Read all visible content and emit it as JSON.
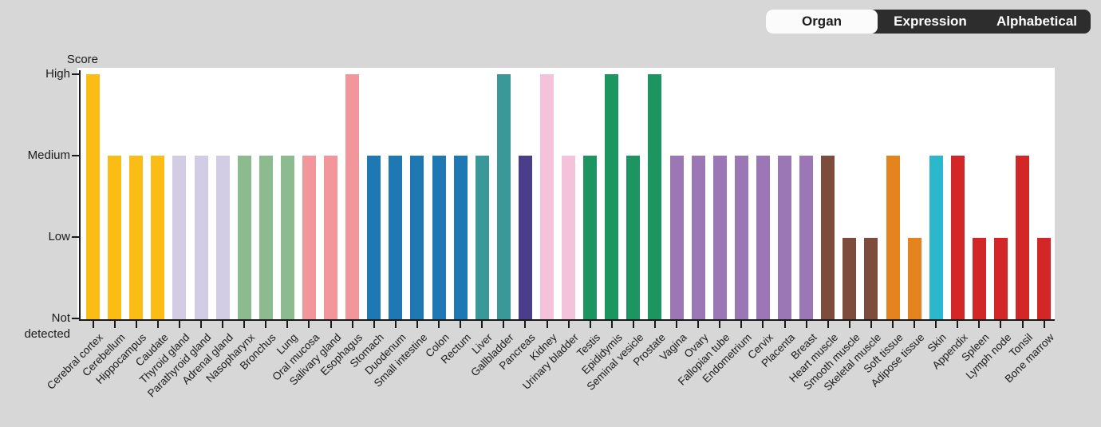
{
  "controls": {
    "options": [
      {
        "label": "Organ",
        "active": true
      },
      {
        "label": "Expression",
        "active": false
      },
      {
        "label": "Alphabetical",
        "active": false
      }
    ]
  },
  "chart_data": {
    "type": "bar",
    "title": "",
    "y_axis": {
      "title": "Score",
      "ticks": [
        "High",
        "Medium",
        "Low",
        "Not detected"
      ],
      "levels": {
        "High": 3,
        "Medium": 2,
        "Low": 1,
        "Not detected": 0
      }
    },
    "group_colors": {
      "brain": "#FBBC15",
      "endocrine": "#D2CDE5",
      "respiratory": "#8CBB8F",
      "upper_gi": "#F2969B",
      "gi_tract": "#1E78B4",
      "liver_gallbladder": "#3B9899",
      "pancreas": "#4A3D8A",
      "kidney_urinary": "#F5C2DC",
      "male_repro": "#1D9560",
      "female_repro": "#9B77B5",
      "muscle": "#7D4C3C",
      "connective_adipose": "#E5831F",
      "skin": "#2BB8CC",
      "immune_blood": "#D32626"
    },
    "bars": [
      {
        "label": "Cerebral cortex",
        "score": "High",
        "level": 3,
        "group": "brain"
      },
      {
        "label": "Cerebellum",
        "score": "Medium",
        "level": 2,
        "group": "brain"
      },
      {
        "label": "Hippocampus",
        "score": "Medium",
        "level": 2,
        "group": "brain"
      },
      {
        "label": "Caudate",
        "score": "Medium",
        "level": 2,
        "group": "brain"
      },
      {
        "label": "Thyroid gland",
        "score": "Medium",
        "level": 2,
        "group": "endocrine"
      },
      {
        "label": "Parathyroid gland",
        "score": "Medium",
        "level": 2,
        "group": "endocrine"
      },
      {
        "label": "Adrenal gland",
        "score": "Medium",
        "level": 2,
        "group": "endocrine"
      },
      {
        "label": "Nasopharynx",
        "score": "Medium",
        "level": 2,
        "group": "respiratory"
      },
      {
        "label": "Bronchus",
        "score": "Medium",
        "level": 2,
        "group": "respiratory"
      },
      {
        "label": "Lung",
        "score": "Medium",
        "level": 2,
        "group": "respiratory"
      },
      {
        "label": "Oral mucosa",
        "score": "Medium",
        "level": 2,
        "group": "upper_gi"
      },
      {
        "label": "Salivary gland",
        "score": "Medium",
        "level": 2,
        "group": "upper_gi"
      },
      {
        "label": "Esophagus",
        "score": "High",
        "level": 3,
        "group": "upper_gi"
      },
      {
        "label": "Stomach",
        "score": "Medium",
        "level": 2,
        "group": "gi_tract"
      },
      {
        "label": "Duodenum",
        "score": "Medium",
        "level": 2,
        "group": "gi_tract"
      },
      {
        "label": "Small intestine",
        "score": "Medium",
        "level": 2,
        "group": "gi_tract"
      },
      {
        "label": "Colon",
        "score": "Medium",
        "level": 2,
        "group": "gi_tract"
      },
      {
        "label": "Rectum",
        "score": "Medium",
        "level": 2,
        "group": "gi_tract"
      },
      {
        "label": "Liver",
        "score": "Medium",
        "level": 2,
        "group": "liver_gallbladder"
      },
      {
        "label": "Gallbladder",
        "score": "High",
        "level": 3,
        "group": "liver_gallbladder"
      },
      {
        "label": "Pancreas",
        "score": "Medium",
        "level": 2,
        "group": "pancreas"
      },
      {
        "label": "Kidney",
        "score": "High",
        "level": 3,
        "group": "kidney_urinary"
      },
      {
        "label": "Urinary bladder",
        "score": "Medium",
        "level": 2,
        "group": "kidney_urinary"
      },
      {
        "label": "Testis",
        "score": "Medium",
        "level": 2,
        "group": "male_repro"
      },
      {
        "label": "Epididymis",
        "score": "High",
        "level": 3,
        "group": "male_repro"
      },
      {
        "label": "Seminal vesicle",
        "score": "Medium",
        "level": 2,
        "group": "male_repro"
      },
      {
        "label": "Prostate",
        "score": "High",
        "level": 3,
        "group": "male_repro"
      },
      {
        "label": "Vagina",
        "score": "Medium",
        "level": 2,
        "group": "female_repro"
      },
      {
        "label": "Ovary",
        "score": "Medium",
        "level": 2,
        "group": "female_repro"
      },
      {
        "label": "Fallopian tube",
        "score": "Medium",
        "level": 2,
        "group": "female_repro"
      },
      {
        "label": "Endometrium",
        "score": "Medium",
        "level": 2,
        "group": "female_repro"
      },
      {
        "label": "Cervix",
        "score": "Medium",
        "level": 2,
        "group": "female_repro"
      },
      {
        "label": "Placenta",
        "score": "Medium",
        "level": 2,
        "group": "female_repro"
      },
      {
        "label": "Breast",
        "score": "Medium",
        "level": 2,
        "group": "female_repro"
      },
      {
        "label": "Heart muscle",
        "score": "Medium",
        "level": 2,
        "group": "muscle"
      },
      {
        "label": "Smooth muscle",
        "score": "Low",
        "level": 1,
        "group": "muscle"
      },
      {
        "label": "Skeletal muscle",
        "score": "Low",
        "level": 1,
        "group": "muscle"
      },
      {
        "label": "Soft tissue",
        "score": "Medium",
        "level": 2,
        "group": "connective_adipose"
      },
      {
        "label": "Adipose tissue",
        "score": "Low",
        "level": 1,
        "group": "connective_adipose"
      },
      {
        "label": "Skin",
        "score": "Medium",
        "level": 2,
        "group": "skin"
      },
      {
        "label": "Appendix",
        "score": "Medium",
        "level": 2,
        "group": "immune_blood"
      },
      {
        "label": "Spleen",
        "score": "Low",
        "level": 1,
        "group": "immune_blood"
      },
      {
        "label": "Lymph node",
        "score": "Low",
        "level": 1,
        "group": "immune_blood"
      },
      {
        "label": "Tonsil",
        "score": "Medium",
        "level": 2,
        "group": "immune_blood"
      },
      {
        "label": "Bone marrow",
        "score": "Low",
        "level": 1,
        "group": "immune_blood"
      }
    ]
  }
}
